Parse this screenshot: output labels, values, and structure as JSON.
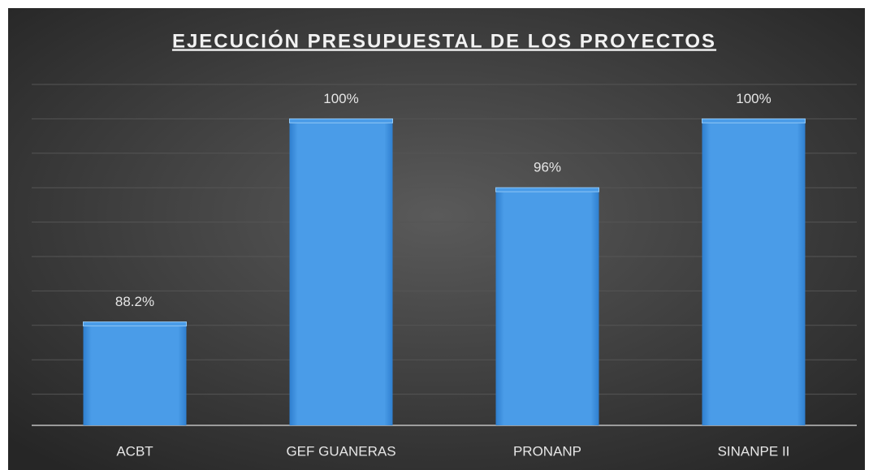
{
  "chart_data": {
    "type": "bar",
    "title": "EJECUCIÓN PRESUPUESTAL DE LOS PROYECTOS",
    "categories": [
      "ACBT",
      "GEF GUANERAS",
      "PRONANP",
      "SINANPE II"
    ],
    "values": [
      88.2,
      100,
      96,
      100
    ],
    "value_labels": [
      "88.2%",
      "100%",
      "96%",
      "100%"
    ],
    "color": "#4a9ce8",
    "ylim": [
      82,
      102
    ],
    "yticks": [
      82,
      84,
      86,
      88,
      90,
      92,
      94,
      96,
      98,
      100,
      102
    ],
    "grid": true
  }
}
